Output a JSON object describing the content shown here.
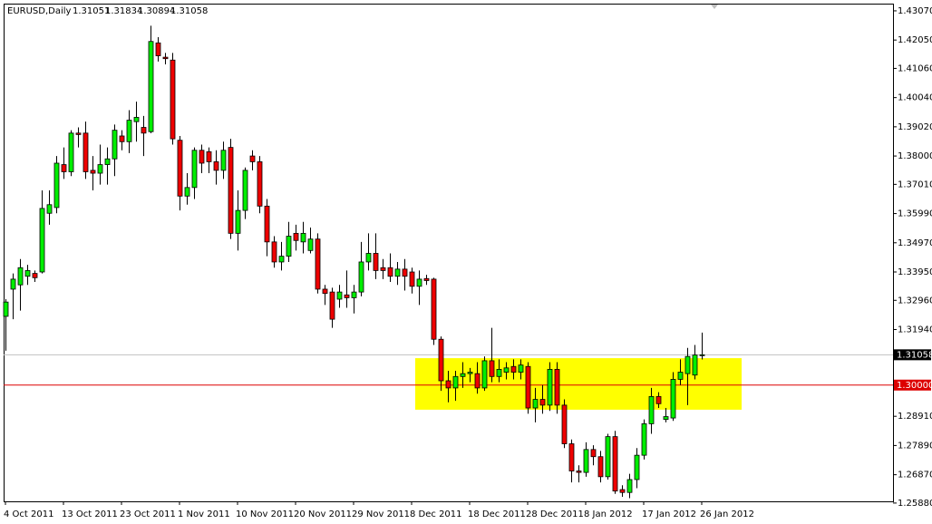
{
  "chart_data": {
    "type": "candlestick",
    "title": "EURUSD,Daily",
    "x": [
      "4 Oct 2011",
      null,
      null,
      null,
      null,
      null,
      null,
      null,
      "13 Oct 2011",
      null,
      null,
      null,
      null,
      null,
      null,
      null,
      "23 Oct 2011",
      null,
      null,
      null,
      null,
      null,
      null,
      null,
      "1 Nov 2011",
      null,
      null,
      null,
      null,
      null,
      null,
      null,
      "10 Nov 2011",
      null,
      null,
      null,
      null,
      null,
      null,
      null,
      "20 Nov 2011",
      null,
      null,
      null,
      null,
      null,
      null,
      null,
      "29 Nov 2011",
      null,
      null,
      null,
      null,
      null,
      null,
      null,
      "8 Dec 2011",
      null,
      null,
      null,
      null,
      null,
      null,
      null,
      "18 Dec 2011",
      null,
      null,
      null,
      null,
      null,
      null,
      null,
      "28 Dec 2011",
      null,
      null,
      null,
      null,
      null,
      null,
      null,
      "8 Jan 2012",
      null,
      null,
      null,
      null,
      null,
      null,
      null,
      "17 Jan 2012",
      null,
      null,
      null,
      null,
      null,
      null,
      null,
      "26 Jan 2012"
    ],
    "open": [
      1.324,
      1.3335,
      1.335,
      1.338,
      1.339,
      1.3395,
      1.36,
      1.362,
      1.377,
      1.3745,
      1.388,
      1.388,
      1.375,
      1.374,
      1.377,
      1.379,
      1.387,
      1.385,
      1.392,
      1.39,
      1.3885,
      1.4195,
      1.4145,
      1.4135,
      1.3855,
      1.366,
      1.369,
      1.382,
      1.3815,
      1.378,
      1.375,
      1.383,
      1.353,
      1.361,
      1.38,
      1.378,
      1.3625,
      1.35,
      1.343,
      1.345,
      1.353,
      1.35,
      1.347,
      1.351,
      1.3335,
      1.3325,
      1.33,
      1.3315,
      1.3305,
      1.3325,
      1.343,
      1.346,
      1.341,
      1.341,
      1.338,
      1.3405,
      1.3395,
      1.3345,
      1.3372,
      1.337,
      1.316,
      1.3015,
      1.299,
      1.303,
      1.304,
      1.304,
      1.299,
      1.3085,
      1.303,
      1.3045,
      1.3065,
      1.3045,
      1.3065,
      1.292,
      1.295,
      1.293,
      1.3055,
      1.293,
      1.2795,
      1.27,
      1.2695,
      1.2775,
      1.275,
      1.268,
      1.282,
      1.2635,
      1.2625,
      1.267,
      1.2755,
      1.2865,
      1.296,
      1.288,
      1.2885,
      1.302,
      1.304,
      1.3035,
      1.31051
    ],
    "high": [
      1.33,
      1.339,
      1.344,
      1.342,
      1.34,
      1.368,
      1.368,
      1.38,
      1.383,
      1.389,
      1.39,
      1.392,
      1.38,
      1.384,
      1.383,
      1.391,
      1.389,
      1.396,
      1.399,
      1.394,
      1.4255,
      1.4215,
      1.416,
      1.416,
      1.387,
      1.374,
      1.383,
      1.384,
      1.383,
      1.382,
      1.385,
      1.386,
      1.368,
      1.376,
      1.382,
      1.38,
      1.365,
      1.352,
      1.35,
      1.357,
      1.356,
      1.357,
      1.355,
      1.353,
      1.335,
      1.334,
      1.335,
      1.34,
      1.335,
      1.35,
      1.353,
      1.353,
      1.344,
      1.346,
      1.343,
      1.344,
      1.341,
      1.34,
      1.3385,
      1.3375,
      1.317,
      1.305,
      1.305,
      1.308,
      1.306,
      1.308,
      1.31,
      1.32,
      1.309,
      1.308,
      1.309,
      1.309,
      1.308,
      1.299,
      1.3,
      1.308,
      1.308,
      1.295,
      1.281,
      1.272,
      1.28,
      1.279,
      1.277,
      1.283,
      1.284,
      1.265,
      1.269,
      1.278,
      1.288,
      1.299,
      1.2975,
      1.292,
      1.3045,
      1.309,
      1.313,
      1.314,
      1.31834
    ],
    "low": [
      1.312,
      1.323,
      1.326,
      1.335,
      1.336,
      1.339,
      1.356,
      1.36,
      1.372,
      1.373,
      1.383,
      1.372,
      1.368,
      1.37,
      1.37,
      1.373,
      1.382,
      1.381,
      1.385,
      1.38,
      1.388,
      1.413,
      1.412,
      1.384,
      1.361,
      1.363,
      1.365,
      1.374,
      1.374,
      1.37,
      1.372,
      1.351,
      1.347,
      1.358,
      1.375,
      1.36,
      1.345,
      1.341,
      1.34,
      1.343,
      1.347,
      1.346,
      1.346,
      1.332,
      1.328,
      1.32,
      1.327,
      1.327,
      1.325,
      1.331,
      1.34,
      1.337,
      1.337,
      1.336,
      1.335,
      1.333,
      1.332,
      1.328,
      1.335,
      1.314,
      1.298,
      1.294,
      1.2945,
      1.299,
      1.301,
      1.297,
      1.298,
      1.301,
      1.301,
      1.302,
      1.302,
      1.302,
      1.29,
      1.287,
      1.29,
      1.291,
      1.29,
      1.278,
      1.266,
      1.266,
      1.268,
      1.272,
      1.266,
      1.267,
      1.262,
      1.261,
      1.2605,
      1.264,
      1.274,
      1.283,
      1.292,
      1.287,
      1.2875,
      1.3,
      1.293,
      1.302,
      1.30894
    ],
    "close": [
      1.329,
      1.337,
      1.341,
      1.34,
      1.3375,
      1.3617,
      1.363,
      1.3775,
      1.3745,
      1.388,
      1.3875,
      1.3745,
      1.374,
      1.377,
      1.379,
      1.389,
      1.385,
      1.3925,
      1.3935,
      1.388,
      1.42,
      1.415,
      1.414,
      1.386,
      1.366,
      1.369,
      1.382,
      1.3775,
      1.378,
      1.375,
      1.382,
      1.353,
      1.361,
      1.375,
      1.378,
      1.3625,
      1.35,
      1.343,
      1.345,
      1.352,
      1.3505,
      1.353,
      1.351,
      1.3335,
      1.332,
      1.323,
      1.3325,
      1.3305,
      1.3325,
      1.343,
      1.346,
      1.34,
      1.34,
      1.338,
      1.3405,
      1.338,
      1.3345,
      1.337,
      1.3365,
      1.316,
      1.3015,
      1.299,
      1.303,
      1.304,
      1.3045,
      1.299,
      1.3085,
      1.303,
      1.3055,
      1.306,
      1.3045,
      1.307,
      1.292,
      1.295,
      1.293,
      1.3055,
      1.293,
      1.2795,
      1.27,
      1.2695,
      1.2775,
      1.275,
      1.268,
      1.282,
      1.263,
      1.2625,
      1.267,
      1.2755,
      1.2865,
      1.296,
      1.2935,
      1.289,
      1.302,
      1.3045,
      1.31,
      1.3105,
      1.31058
    ],
    "up_color": "#00ee00",
    "down_color": "#ee0000",
    "ylim": [
      1.2594,
      1.4329
    ],
    "yticks": [
      {
        "value": 1.4307,
        "label": "1.43070"
      },
      {
        "value": 1.4205,
        "label": "1.42050"
      },
      {
        "value": 1.4106,
        "label": "1.41060"
      },
      {
        "value": 1.4004,
        "label": "1.40040"
      },
      {
        "value": 1.3902,
        "label": "1.39020"
      },
      {
        "value": 1.38,
        "label": "1.38000"
      },
      {
        "value": 1.3701,
        "label": "1.37010"
      },
      {
        "value": 1.3599,
        "label": "1.35990"
      },
      {
        "value": 1.3497,
        "label": "1.34970"
      },
      {
        "value": 1.3395,
        "label": "1.33950"
      },
      {
        "value": 1.3296,
        "label": "1.32960"
      },
      {
        "value": 1.3194,
        "label": "1.31940"
      },
      {
        "value": 1.2891,
        "label": "1.28910"
      },
      {
        "value": 1.2789,
        "label": "1.27890"
      },
      {
        "value": 1.2687,
        "label": "1.26870"
      },
      {
        "value": 1.2588,
        "label": "1.25880"
      }
    ],
    "level": {
      "value": 1.3,
      "label": "1.30000",
      "color": "#dd0000"
    },
    "zone": {
      "low": 1.2914,
      "high": 1.3094,
      "start": 57,
      "end": 102,
      "color": "#ffff00"
    }
  }
}
